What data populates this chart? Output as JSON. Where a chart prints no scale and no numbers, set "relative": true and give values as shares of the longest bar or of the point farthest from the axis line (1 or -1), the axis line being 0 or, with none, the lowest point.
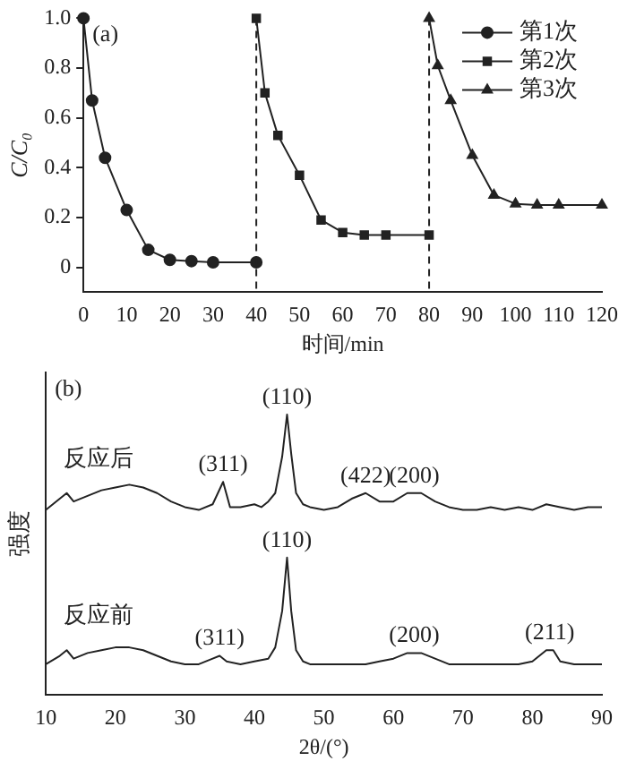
{
  "chart_data": [
    {
      "type": "line",
      "xlabel": "时间/min",
      "ylabel": "C/C₀",
      "xlim": [
        0,
        120
      ],
      "ylim": [
        -0.1,
        1
      ],
      "xticks": [
        0,
        10,
        20,
        30,
        40,
        50,
        60,
        70,
        80,
        90,
        100,
        110,
        120
      ],
      "yticks": [
        0,
        0.2,
        0.4,
        0.6,
        0.8,
        {
          "value": 1,
          "label": "1.0"
        }
      ],
      "grid": false,
      "legend": "top right",
      "annotations": [
        "(a)"
      ],
      "ref_lines": [
        {
          "axis": "x",
          "value": 40,
          "line_style": "dashed"
        },
        {
          "axis": "x",
          "value": 80,
          "line_style": "dashed"
        }
      ],
      "series": [
        {
          "name": "第1次",
          "color": "#222222",
          "marker": "circle",
          "x": [
            0,
            2,
            5,
            10,
            15,
            20,
            25,
            30,
            40
          ],
          "values": [
            1.0,
            0.67,
            0.44,
            0.23,
            0.07,
            0.03,
            0.025,
            0.02,
            0.02
          ]
        },
        {
          "name": "第2次",
          "color": "#222222",
          "marker": "square",
          "x": [
            40,
            42,
            45,
            50,
            55,
            60,
            65,
            70,
            80
          ],
          "values": [
            1.0,
            0.7,
            0.53,
            0.37,
            0.19,
            0.14,
            0.13,
            0.13,
            0.13
          ]
        },
        {
          "name": "第3次",
          "color": "#222222",
          "marker": "triangle",
          "x": [
            80,
            82,
            85,
            90,
            95,
            100,
            105,
            110,
            120
          ],
          "values": [
            1.0,
            0.81,
            0.67,
            0.45,
            0.29,
            0.255,
            0.25,
            0.25,
            0.25
          ]
        }
      ]
    },
    {
      "type": "line",
      "relative": true,
      "xlabel": "2θ/(°)",
      "ylabel": "强度",
      "xlim": [
        10,
        90
      ],
      "xticks": [
        10,
        20,
        30,
        40,
        50,
        60,
        70,
        80,
        90
      ],
      "grid": false,
      "legend": false,
      "marker": "none",
      "annotations": [
        "(b)",
        {
          "text": "(110)",
          "x": 44.7,
          "y": 1.0
        },
        {
          "text": "(311)",
          "x": 35.5,
          "y": 0.76
        },
        {
          "text": "(422)",
          "x": 56,
          "y": 0.72
        },
        {
          "text": "(200)",
          "x": 63,
          "y": 0.72
        },
        {
          "text": "(110)",
          "x": 44.7,
          "y": 0.49
        },
        {
          "text": "(311)",
          "x": 35,
          "y": 0.14
        },
        {
          "text": "(200)",
          "x": 63,
          "y": 0.15
        },
        {
          "text": "(211)",
          "x": 82.5,
          "y": 0.16
        }
      ],
      "series": [
        {
          "name": "反应后",
          "color": "#222222",
          "x": [
            10,
            12,
            13,
            14,
            16,
            18,
            20,
            22,
            24,
            26,
            28,
            30,
            32,
            34,
            35.5,
            36.5,
            38,
            40,
            41,
            42,
            43,
            44,
            44.7,
            45.3,
            46,
            47,
            48,
            50,
            52,
            54,
            56,
            58,
            60,
            62,
            64,
            66,
            68,
            70,
            72,
            74,
            76,
            78,
            80,
            82,
            84,
            86,
            88,
            90
          ],
          "values": [
            0.66,
            0.7,
            0.72,
            0.69,
            0.71,
            0.73,
            0.74,
            0.75,
            0.74,
            0.72,
            0.69,
            0.67,
            0.66,
            0.68,
            0.76,
            0.67,
            0.67,
            0.68,
            0.67,
            0.69,
            0.72,
            0.85,
            1.0,
            0.86,
            0.72,
            0.68,
            0.67,
            0.66,
            0.67,
            0.7,
            0.72,
            0.69,
            0.69,
            0.72,
            0.72,
            0.69,
            0.67,
            0.66,
            0.66,
            0.67,
            0.66,
            0.67,
            0.66,
            0.68,
            0.67,
            0.66,
            0.67,
            0.67
          ]
        },
        {
          "name": "反应前",
          "color": "#222222",
          "x": [
            10,
            12,
            13,
            14,
            16,
            18,
            20,
            22,
            24,
            26,
            28,
            30,
            32,
            34,
            35,
            36,
            38,
            40,
            42,
            43,
            44,
            44.7,
            45.3,
            46,
            47,
            48,
            50,
            52,
            54,
            56,
            58,
            60,
            62,
            64,
            66,
            68,
            70,
            72,
            74,
            76,
            78,
            80,
            82,
            83,
            84,
            86,
            88,
            90
          ],
          "values": [
            0.11,
            0.14,
            0.16,
            0.13,
            0.15,
            0.16,
            0.17,
            0.17,
            0.16,
            0.14,
            0.12,
            0.11,
            0.11,
            0.13,
            0.14,
            0.12,
            0.11,
            0.12,
            0.13,
            0.17,
            0.3,
            0.49,
            0.3,
            0.16,
            0.12,
            0.11,
            0.11,
            0.11,
            0.11,
            0.11,
            0.12,
            0.13,
            0.15,
            0.15,
            0.13,
            0.11,
            0.11,
            0.11,
            0.11,
            0.11,
            0.11,
            0.12,
            0.16,
            0.16,
            0.12,
            0.11,
            0.11,
            0.11
          ]
        }
      ]
    }
  ]
}
